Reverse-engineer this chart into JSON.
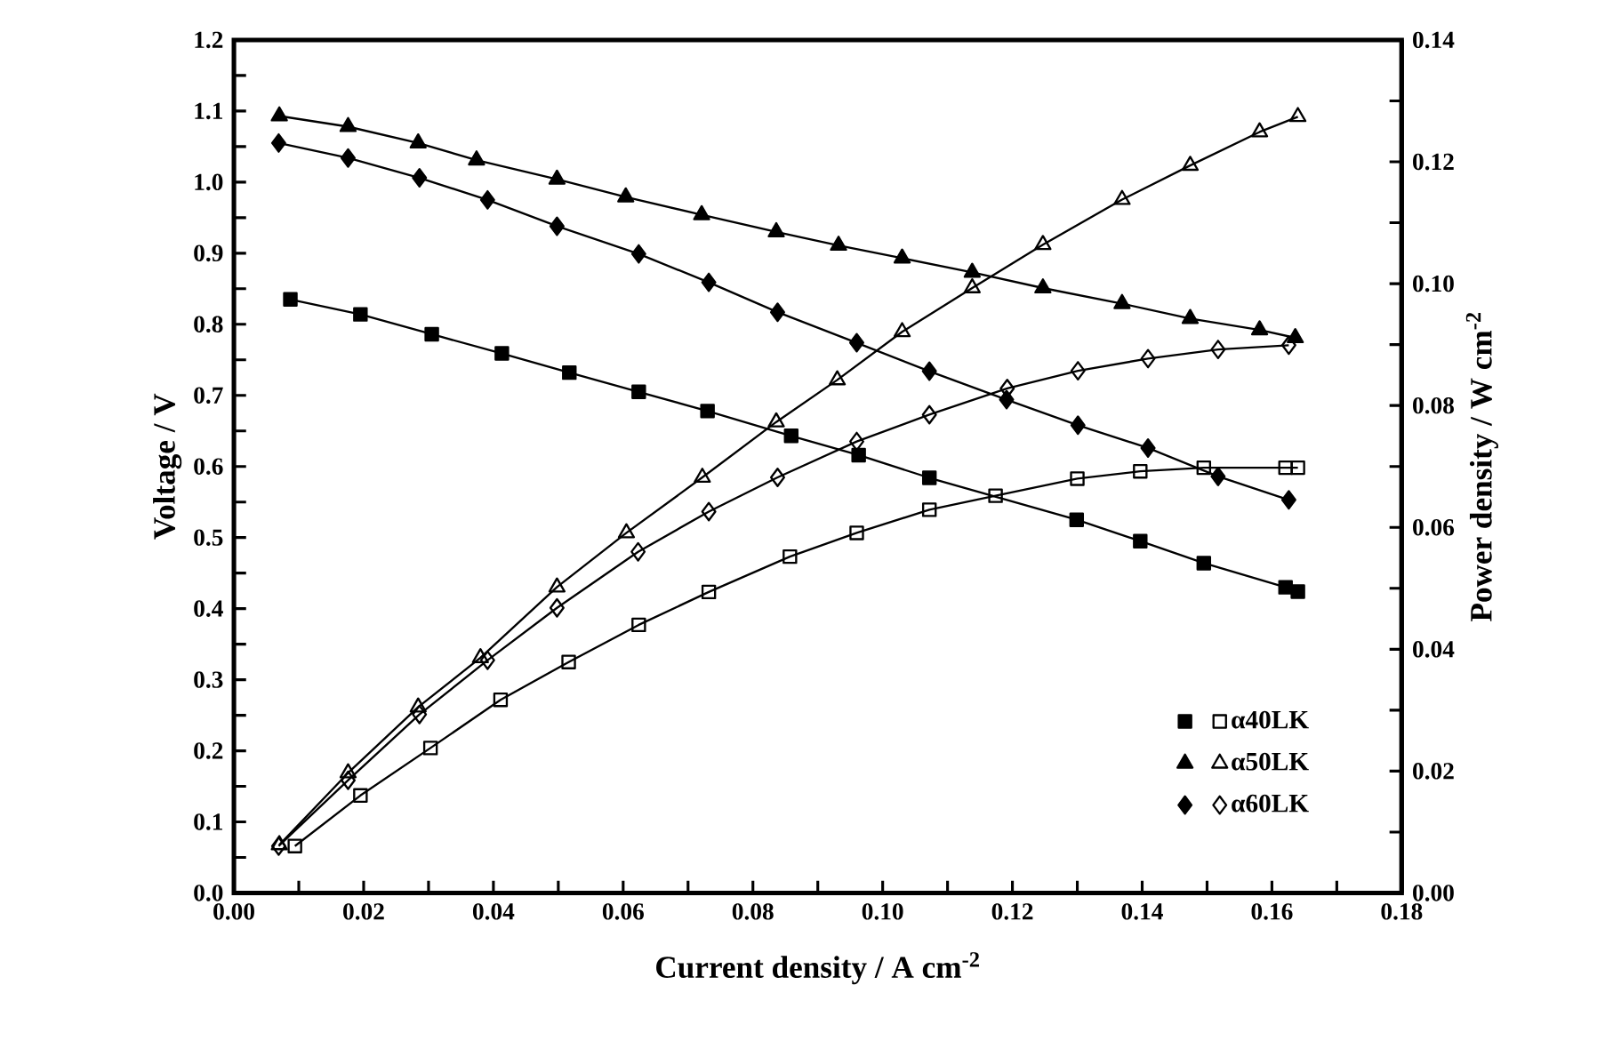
{
  "chart_data": {
    "type": "line",
    "xlabel": "Current density / A cm$^{-2}$",
    "ylabel": "Voltage / V",
    "y2label": "Power density / W cm$^{-2}$",
    "xlim": [
      0,
      0.18
    ],
    "ylim": [
      0,
      1.2
    ],
    "y2lim": [
      0,
      0.14
    ],
    "xticks": [
      {
        "value": 0,
        "label": "0.00"
      },
      {
        "value": 0.01,
        "label": null
      },
      {
        "value": 0.02,
        "label": "0.02"
      },
      {
        "value": 0.03,
        "label": null
      },
      {
        "value": 0.04,
        "label": "0.04"
      },
      {
        "value": 0.05,
        "label": null
      },
      {
        "value": 0.06,
        "label": "0.06"
      },
      {
        "value": 0.07,
        "label": null
      },
      {
        "value": 0.08,
        "label": "0.08"
      },
      {
        "value": 0.09,
        "label": null
      },
      {
        "value": 0.1,
        "label": "0.10"
      },
      {
        "value": 0.11,
        "label": null
      },
      {
        "value": 0.12,
        "label": "0.12"
      },
      {
        "value": 0.13,
        "label": null
      },
      {
        "value": 0.14,
        "label": "0.14"
      },
      {
        "value": 0.15,
        "label": null
      },
      {
        "value": 0.16,
        "label": "0.16"
      },
      {
        "value": 0.17,
        "label": null
      },
      {
        "value": 0.18,
        "label": "0.18"
      }
    ],
    "yticks": [
      {
        "value": 0,
        "label": "0.0"
      },
      {
        "value": 0.05,
        "label": null
      },
      0.1,
      {
        "value": 0.15,
        "label": null
      },
      0.2,
      {
        "value": 0.25,
        "label": null
      },
      0.3,
      {
        "value": 0.35,
        "label": null
      },
      0.4,
      {
        "value": 0.45,
        "label": null
      },
      0.5,
      {
        "value": 0.55,
        "label": null
      },
      0.6,
      {
        "value": 0.65,
        "label": null
      },
      0.7,
      {
        "value": 0.75,
        "label": null
      },
      0.8,
      {
        "value": 0.85,
        "label": null
      },
      0.9,
      {
        "value": 0.95,
        "label": null
      },
      {
        "value": 1,
        "label": "1.0"
      },
      {
        "value": 1.05,
        "label": null
      },
      1.1,
      {
        "value": 1.15,
        "label": null
      },
      1.2
    ],
    "y2ticks": [
      {
        "value": 0,
        "label": "0.00"
      },
      {
        "value": 0.01,
        "label": null
      },
      {
        "value": 0.02,
        "label": "0.02"
      },
      {
        "value": 0.03,
        "label": null
      },
      {
        "value": 0.04,
        "label": "0.04"
      },
      {
        "value": 0.05,
        "label": null
      },
      {
        "value": 0.06,
        "label": "0.06"
      },
      {
        "value": 0.07,
        "label": null
      },
      {
        "value": 0.08,
        "label": "0.08"
      },
      {
        "value": 0.09,
        "label": null
      },
      {
        "value": 0.1,
        "label": "0.10"
      },
      {
        "value": 0.11,
        "label": null
      },
      {
        "value": 0.12,
        "label": "0.12"
      },
      {
        "value": 0.13,
        "label": null
      },
      {
        "value": 0.14,
        "label": "0.14"
      }
    ],
    "legend": "bottom right",
    "line_style": "solid",
    "series": [
      {
        "color": "#000000",
        "marker": "square",
        "x": [
          0.0087,
          0.0195,
          0.0305,
          0.0413,
          0.0517,
          0.0624,
          0.073,
          0.0859,
          0.0963,
          0.1072,
          0.1173,
          0.1299,
          0.1397,
          0.1495,
          0.1621,
          0.164
        ],
        "values": [
          0.835,
          0.814,
          0.786,
          0.759,
          0.732,
          0.705,
          0.678,
          0.643,
          0.616,
          0.584,
          null,
          0.525,
          0.495,
          0.464,
          0.43,
          0.424
        ]
      },
      {
        "name": "α40LK",
        "color": "#000000",
        "marker": "square",
        "axis": "y2",
        "x": [
          0.0094,
          0.0195,
          0.0303,
          0.0411,
          0.0516,
          0.0624,
          0.0732,
          0.0857,
          0.096,
          0.1072,
          0.1174,
          0.13,
          0.1397,
          0.1495,
          0.1621,
          0.164
        ],
        "values": [
          0.0077,
          0.016,
          0.0238,
          0.0317,
          0.0379,
          0.044,
          0.0494,
          0.0552,
          0.0591,
          0.0629,
          0.0652,
          0.068,
          0.0692,
          0.0698,
          0.0698,
          0.0698
        ]
      },
      {
        "color": "#000000",
        "marker": "triangle",
        "x": [
          0.007,
          0.0176,
          0.0284,
          0.0374,
          0.0498,
          0.0604,
          0.0721,
          0.0836,
          0.0932,
          0.103,
          0.1138,
          0.1247,
          0.1369,
          0.1474,
          0.1581,
          0.1636
        ],
        "values": [
          1.093,
          1.078,
          1.055,
          1.031,
          1.004,
          0.979,
          0.954,
          0.93,
          0.911,
          0.893,
          0.873,
          0.851,
          0.829,
          0.808,
          0.792,
          0.781
        ]
      },
      {
        "name": "α50LK",
        "color": "#000000",
        "marker": "triangle",
        "axis": "y2",
        "x": [
          0.007,
          0.0176,
          0.0284,
          0.038,
          0.0498,
          0.0605,
          0.0722,
          0.0836,
          0.093,
          0.103,
          0.1138,
          0.1247,
          0.1369,
          0.1474,
          0.1581,
          0.164
        ],
        "values": [
          0.0079,
          0.0197,
          0.0305,
          0.0386,
          0.0502,
          0.0591,
          0.0682,
          0.0773,
          0.0842,
          0.0921,
          0.0993,
          0.1064,
          0.1138,
          0.1194,
          0.1249,
          0.1274
        ]
      },
      {
        "color": "#000000",
        "marker": "diamond",
        "x": [
          0.0069,
          0.0176,
          0.0286,
          0.0391,
          0.0498,
          0.0624,
          0.0732,
          0.0838,
          0.096,
          0.1072,
          0.1191,
          0.1301,
          0.1409,
          0.1517,
          0.1626
        ],
        "values": [
          1.055,
          1.034,
          1.006,
          0.975,
          0.938,
          0.899,
          0.859,
          0.817,
          0.774,
          0.734,
          0.694,
          0.658,
          0.626,
          0.586,
          0.553
        ]
      },
      {
        "name": "α60LK",
        "color": "#000000",
        "marker": "diamond",
        "axis": "y2",
        "x": [
          0.0069,
          0.0176,
          0.0286,
          0.0391,
          0.0498,
          0.0623,
          0.0732,
          0.0838,
          0.096,
          0.1072,
          0.1192,
          0.1301,
          0.1409,
          0.1517,
          0.1626
        ],
        "values": [
          0.0077,
          0.0185,
          0.0293,
          0.0382,
          0.0468,
          0.056,
          0.0626,
          0.0682,
          0.0741,
          0.0785,
          0.0828,
          0.0857,
          0.0877,
          0.0892,
          0.0899
        ]
      }
    ]
  }
}
